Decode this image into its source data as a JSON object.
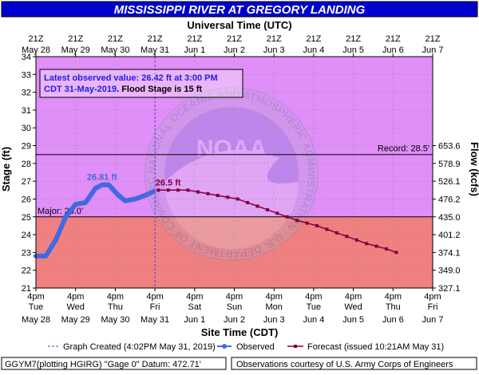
{
  "chart_data": {
    "type": "line",
    "title": "MISSISSIPPI RIVER AT GREGORY LANDING",
    "top_axis_title": "Universal Time (UTC)",
    "bottom_axis_title": "Site Time (CDT)",
    "ylabel": "Stage (ft)",
    "y2label": "Flow (kcfs)",
    "ylim": [
      21,
      34
    ],
    "yticks": [
      21,
      22,
      23,
      24,
      25,
      26,
      27,
      28,
      29,
      30,
      31,
      32,
      33,
      34
    ],
    "flow_ticks": [
      {
        "stage": 21,
        "label": "327.1"
      },
      {
        "stage": 22,
        "label": "349.0"
      },
      {
        "stage": 23,
        "label": "374.1"
      },
      {
        "stage": 24,
        "label": "401.2"
      },
      {
        "stage": 25,
        "label": "435.0"
      },
      {
        "stage": 26,
        "label": "476.2"
      },
      {
        "stage": 27,
        "label": "526.1"
      },
      {
        "stage": 28,
        "label": "578.9"
      },
      {
        "stage": 29,
        "label": "653.6"
      }
    ],
    "xlim": [
      "2019-05-28T16:00",
      "2019-06-07T16:00"
    ],
    "top_ticks": [
      {
        "l1": "21Z",
        "l2": "May 28"
      },
      {
        "l1": "21Z",
        "l2": "May 29"
      },
      {
        "l1": "21Z",
        "l2": "May 30"
      },
      {
        "l1": "21Z",
        "l2": "May 31"
      },
      {
        "l1": "21Z",
        "l2": "Jun 1"
      },
      {
        "l1": "21Z",
        "l2": "Jun 2"
      },
      {
        "l1": "21Z",
        "l2": "Jun 3"
      },
      {
        "l1": "21Z",
        "l2": "Jun 4"
      },
      {
        "l1": "21Z",
        "l2": "Jun 5"
      },
      {
        "l1": "21Z",
        "l2": "Jun 6"
      },
      {
        "l1": "21Z",
        "l2": "Jun 7"
      }
    ],
    "bottom_ticks": [
      {
        "l1": "4pm",
        "l2": "Tue",
        "l3": "May 28"
      },
      {
        "l1": "4pm",
        "l2": "Wed",
        "l3": "May 29"
      },
      {
        "l1": "4pm",
        "l2": "Thu",
        "l3": "May 30"
      },
      {
        "l1": "4pm",
        "l2": "Fri",
        "l3": "May 31"
      },
      {
        "l1": "4pm",
        "l2": "Sat",
        "l3": "Jun 1"
      },
      {
        "l1": "4pm",
        "l2": "Sun",
        "l3": "Jun 2"
      },
      {
        "l1": "4pm",
        "l2": "Mon",
        "l3": "Jun 3"
      },
      {
        "l1": "4pm",
        "l2": "Tue",
        "l3": "Jun 4"
      },
      {
        "l1": "4pm",
        "l2": "Wed",
        "l3": "Jun 5"
      },
      {
        "l1": "4pm",
        "l2": "Thu",
        "l3": "Jun 6"
      },
      {
        "l1": "4pm",
        "l2": "Fri",
        "l3": "Jun 7"
      }
    ],
    "bands": [
      {
        "from": 21,
        "to": 25,
        "color": "#f08080"
      },
      {
        "from": 25,
        "to": 34,
        "color": "#e08ef8"
      }
    ],
    "thresholds": [
      {
        "label": "Major: 25.0'",
        "value": 25.0
      },
      {
        "label": "Record: 28.5'",
        "value": 28.5
      }
    ],
    "observed": {
      "name": "Observed",
      "color": "#4169e1",
      "x": [
        "2019-05-28T16:00",
        "2019-05-28T22:00",
        "2019-05-29T04:00",
        "2019-05-29T10:00",
        "2019-05-29T16:00",
        "2019-05-29T22:00",
        "2019-05-30T04:00",
        "2019-05-30T08:00",
        "2019-05-30T12:00",
        "2019-05-30T18:00",
        "2019-05-30T22:00",
        "2019-05-31T04:00",
        "2019-05-31T10:00",
        "2019-05-31T15:00"
      ],
      "y": [
        22.8,
        22.8,
        23.7,
        25.0,
        25.7,
        25.8,
        26.6,
        26.8,
        26.8,
        26.2,
        25.9,
        26.0,
        26.2,
        26.42
      ]
    },
    "forecast": {
      "name": "Forecast (issued 10:21AM May 31)",
      "color": "#800040",
      "x": [
        "2019-05-31T18:00",
        "2019-06-01T00:00",
        "2019-06-01T06:00",
        "2019-06-01T12:00",
        "2019-06-01T18:00",
        "2019-06-02T00:00",
        "2019-06-02T06:00",
        "2019-06-02T12:00",
        "2019-06-02T18:00",
        "2019-06-03T00:00",
        "2019-06-03T06:00",
        "2019-06-03T12:00",
        "2019-06-03T18:00",
        "2019-06-04T00:00",
        "2019-06-04T06:00",
        "2019-06-04T12:00",
        "2019-06-04T18:00",
        "2019-06-05T00:00",
        "2019-06-05T06:00",
        "2019-06-05T12:00",
        "2019-06-05T18:00",
        "2019-06-06T00:00",
        "2019-06-06T06:00",
        "2019-06-06T12:00",
        "2019-06-06T18:00"
      ],
      "y": [
        26.5,
        26.5,
        26.5,
        26.5,
        26.4,
        26.3,
        26.2,
        26.1,
        26.0,
        25.8,
        25.6,
        25.4,
        25.2,
        25.0,
        24.8,
        24.65,
        24.5,
        24.3,
        24.1,
        23.9,
        23.7,
        23.5,
        23.35,
        23.2,
        23.0
      ]
    },
    "annotations": [
      {
        "text": "26.81 ft",
        "x": "2019-05-30T08:00",
        "y": 26.81,
        "color": "#4169e1"
      },
      {
        "text": "26.5 ft",
        "x": "2019-06-01T00:00",
        "y": 26.5,
        "color": "#800040"
      }
    ],
    "created_marker": {
      "x": "2019-05-31T16:02"
    },
    "info_box": {
      "line1": "Latest observed value: 26.42 ft at 3:00 PM",
      "line2_blue": "CDT 31-May-2019",
      "line2_black": ". Flood Stage is 15 ft"
    },
    "legend": {
      "created": "Graph Created (4:02PM May 31, 2019)",
      "observed": "Observed",
      "forecast": "Forecast (issued 10:21AM May 31)"
    },
    "footer": {
      "left": "GGYM7(plotting HGIRG) \"Gage 0\" Datum: 472.71'",
      "right": "Observations courtesy of U.S. Army Corps of Engineers"
    },
    "watermark": {
      "text": "NOAA",
      "ring_text": "NATIONAL OCEANIC AND ATMOSPHERIC ADMINISTRATION · U.S. DEPARTMENT OF COMMERCE"
    },
    "colors": {
      "title_bg": "#0000cd",
      "title_text": "#ffffff",
      "plot_border": "#000000"
    }
  }
}
